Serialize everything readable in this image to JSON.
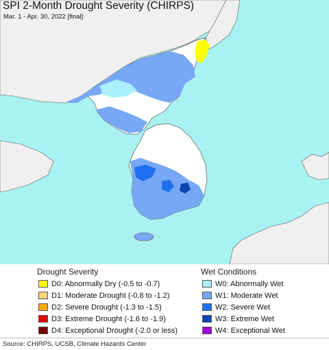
{
  "title": "SPI 2-Month Drought Severity (CHIRPS)",
  "subtitle": "Mar. 1 - Apr. 30, 2022 [final]",
  "colors": {
    "water": "#a9f2f2",
    "land_foreign": "#f0f0f0",
    "land_normal": "#ffffff",
    "border": "#555555"
  },
  "drought_legend": {
    "heading": "Drought Severity",
    "items": [
      {
        "label": "D0: Abnormally Dry (-0.5 to -0.7)",
        "color": "#ffff00"
      },
      {
        "label": "D1: Moderate Drought (-0.8 to -1.2)",
        "color": "#fcd37f"
      },
      {
        "label": "D2: Severe Drought (-1.3 to -1.5)",
        "color": "#ffaa00"
      },
      {
        "label": "D3: Extreme Drought (-1.6 to -1.9)",
        "color": "#e60000"
      },
      {
        "label": "D4: Exceptional Drought (-2.0 or less)",
        "color": "#730000"
      }
    ]
  },
  "wet_legend": {
    "heading": "Wet Conditions",
    "items": [
      {
        "label": "W0: Abnormally Wet",
        "color": "#aaf0ff"
      },
      {
        "label": "W1: Moderate Wet",
        "color": "#76a8f5"
      },
      {
        "label": "W2: Severe Wet",
        "color": "#1e6ef0"
      },
      {
        "label": "W3: Extreme Wet",
        "color": "#0a46b4"
      },
      {
        "label": "W4: Exceptional Wet",
        "color": "#a000dc"
      }
    ]
  },
  "source": "Source: CHIRPS, UCSB, Climate Hazards Center"
}
